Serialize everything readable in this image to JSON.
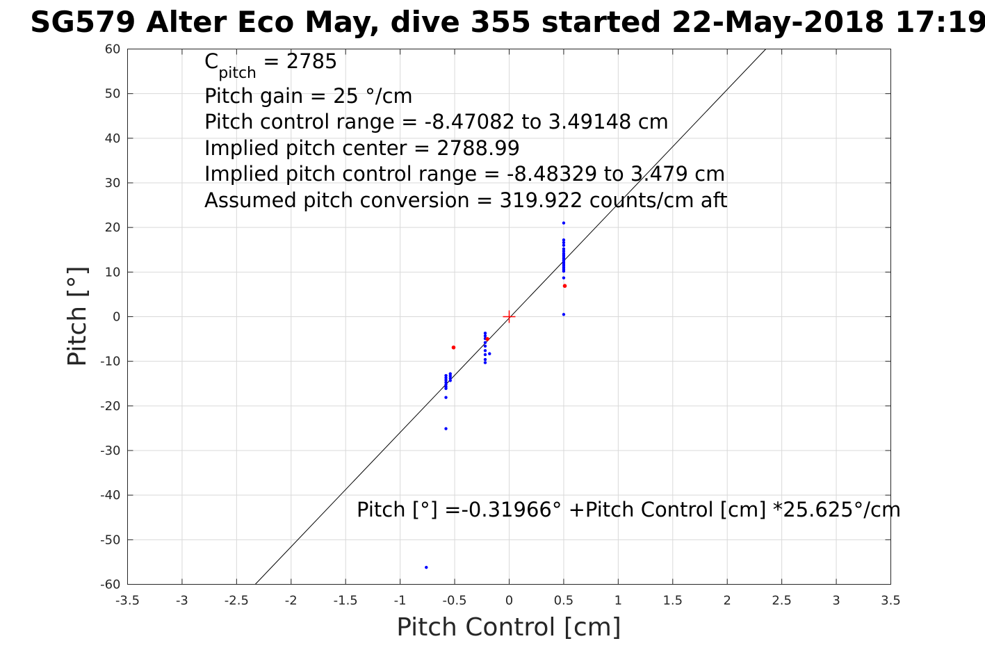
{
  "chart_data": {
    "type": "scatter",
    "title": "SG579 Alter Eco May, dive 355 started 22-May-2018 17:19",
    "xlabel": "Pitch Control [cm]",
    "ylabel": "Pitch [°]",
    "xlim": [
      -3.5,
      3.5
    ],
    "ylim": [
      -60,
      60
    ],
    "x_ticks": [
      -3.5,
      -3,
      -2.5,
      -2,
      -1.5,
      -1,
      -0.5,
      0,
      0.5,
      1,
      1.5,
      2,
      2.5,
      3,
      3.5
    ],
    "x_tick_labels": [
      "-3.5",
      "-3",
      "-2.5",
      "-2",
      "-1.5",
      "-1",
      "-0.5",
      "0",
      "0.5",
      "1",
      "1.5",
      "2",
      "2.5",
      "3",
      "3.5"
    ],
    "y_ticks": [
      -60,
      -50,
      -40,
      -30,
      -20,
      -10,
      0,
      10,
      20,
      30,
      40,
      50,
      60
    ],
    "y_tick_labels": [
      "-60",
      "-50",
      "-40",
      "-30",
      "-20",
      "-10",
      "0",
      "10",
      "20",
      "30",
      "40",
      "50",
      "60"
    ],
    "grid": true,
    "annotations": {
      "cpitch_main": "C",
      "cpitch_sub": "pitch",
      "cpitch_rest": " = 2785",
      "line2": "Pitch gain = 25 °/cm",
      "line3": "Pitch control range = -8.47082 to 3.49148 cm",
      "line4": "Implied pitch center = 2788.99",
      "line5": "Implied pitch control range = -8.48329 to 3.479 cm",
      "line6": "Assumed pitch conversion = 319.922 counts/cm aft",
      "fit_equation": "Pitch [°] =-0.31966° +Pitch Control [cm] *25.625°/cm"
    },
    "fit_line": {
      "intercept": -0.31966,
      "slope": 25.625,
      "color": "#000000"
    },
    "center_marker": {
      "x": 0,
      "y": 0,
      "color": "#ff0000",
      "symbol": "+"
    },
    "series": [
      {
        "color": "#0000ff",
        "points": [
          [
            0.5,
            21
          ],
          [
            0.5,
            17.2
          ],
          [
            0.5,
            16.6
          ],
          [
            0.5,
            16.0
          ],
          [
            0.5,
            15.2
          ],
          [
            0.5,
            14.7
          ],
          [
            0.5,
            14.2
          ],
          [
            0.5,
            13.8
          ],
          [
            0.5,
            13.4
          ],
          [
            0.5,
            13.0
          ],
          [
            0.5,
            12.6
          ],
          [
            0.5,
            12.2
          ],
          [
            0.5,
            11.8
          ],
          [
            0.5,
            11.4
          ],
          [
            0.5,
            11.0
          ],
          [
            0.5,
            10.6
          ],
          [
            0.5,
            10.2
          ],
          [
            0.5,
            8.7
          ],
          [
            0.5,
            0.5
          ],
          [
            -0.22,
            -3.7
          ],
          [
            -0.22,
            -4.3
          ],
          [
            -0.22,
            -4.9
          ],
          [
            -0.22,
            -5.8
          ],
          [
            -0.22,
            -6.6
          ],
          [
            -0.22,
            -7.6
          ],
          [
            -0.22,
            -8.5
          ],
          [
            -0.22,
            -9.6
          ],
          [
            -0.22,
            -10.3
          ],
          [
            -0.18,
            -8.3
          ],
          [
            -0.58,
            -13.2
          ],
          [
            -0.58,
            -13.7
          ],
          [
            -0.58,
            -14.2
          ],
          [
            -0.58,
            -14.7
          ],
          [
            -0.58,
            -15.2
          ],
          [
            -0.58,
            -15.7
          ],
          [
            -0.58,
            -16.1
          ],
          [
            -0.58,
            -18.1
          ],
          [
            -0.58,
            -25.1
          ],
          [
            -0.54,
            -12.8
          ],
          [
            -0.54,
            -13.3
          ],
          [
            -0.54,
            -13.8
          ],
          [
            -0.54,
            -14.3
          ],
          [
            -0.76,
            -56.2
          ]
        ]
      },
      {
        "color": "#ff0000",
        "points": [
          [
            0.51,
            6.9
          ],
          [
            -0.51,
            -6.9
          ],
          [
            -0.2,
            -5.0
          ]
        ]
      }
    ]
  }
}
